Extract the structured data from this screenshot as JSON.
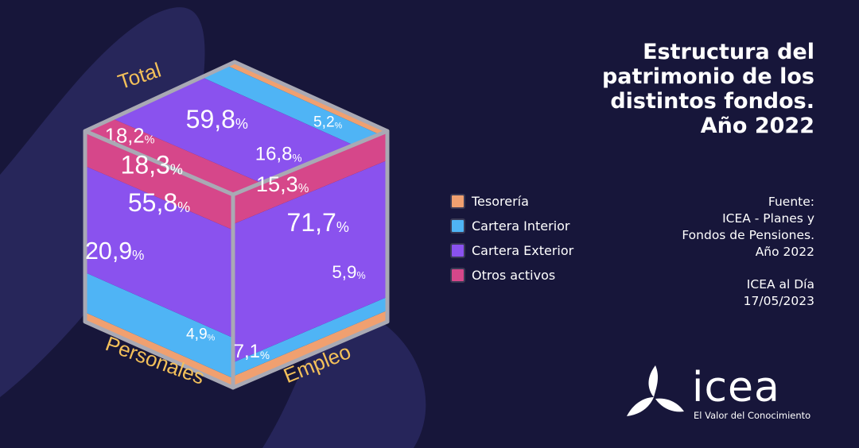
{
  "title_lines": [
    "Estructura del",
    "patrimonio de los",
    "distintos fondos.",
    "Año 2022"
  ],
  "legend": [
    {
      "label": "Tesorería",
      "color": "#f0a070"
    },
    {
      "label": "Cartera Interior",
      "color": "#4fb4f5"
    },
    {
      "label": "Cartera Exterior",
      "color": "#8a52ee"
    },
    {
      "label": "Otros activos",
      "color": "#d6478a"
    }
  ],
  "source": {
    "lines": [
      "Fuente:",
      "ICEA - Planes y",
      "Fondos de Pensiones.",
      "Año 2022"
    ],
    "publication": [
      "ICEA al Día",
      "17/05/2023"
    ]
  },
  "logo": {
    "word": "icea",
    "tagline": "El Valor del Conocimiento"
  },
  "chart_data": {
    "type": "bar",
    "categories": [
      "Total",
      "Personales",
      "Empleo"
    ],
    "series": [
      {
        "name": "Tesorería",
        "values": [
          5.2,
          4.9,
          5.9
        ]
      },
      {
        "name": "Cartera Interior",
        "values": [
          16.8,
          20.9,
          7.1
        ]
      },
      {
        "name": "Cartera Exterior",
        "values": [
          59.8,
          55.8,
          71.7
        ]
      },
      {
        "name": "Otros activos",
        "values": [
          18.2,
          18.3,
          15.3
        ]
      }
    ],
    "value_labels": {
      "Total": [
        "5,2",
        "16,8",
        "59,8",
        "18,2"
      ],
      "Personales": [
        "4,9",
        "20,9",
        "55,8",
        "18,3"
      ],
      "Empleo": [
        "5,9",
        "7,1",
        "71,7",
        "15,3"
      ]
    },
    "percent_sign": "%",
    "stacked": true,
    "units": "%"
  }
}
